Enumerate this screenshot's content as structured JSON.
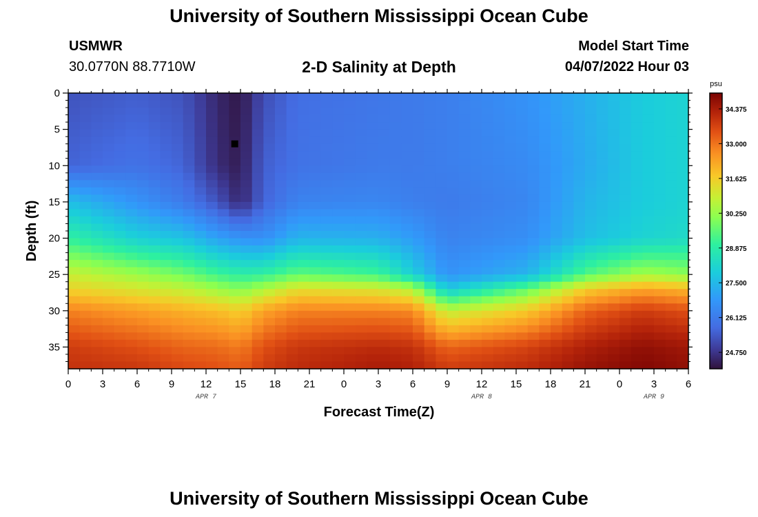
{
  "header": {
    "title": "University of Southern Mississippi Ocean Cube",
    "station": "USMWR",
    "coordinates": "30.0770N  88.7710W",
    "subtitle": "2-D Salinity at Depth",
    "model_start_label": "Model Start Time",
    "model_start_value": "04/07/2022 Hour 03"
  },
  "footer": {
    "title": "University of Southern Mississippi Ocean Cube"
  },
  "chart_data": {
    "type": "heatmap",
    "xlabel": "Forecast Time(Z)",
    "ylabel": "Depth (ft)",
    "x_tick_labels": [
      "0",
      "3",
      "6",
      "9",
      "12",
      "15",
      "18",
      "21",
      "0",
      "3",
      "6",
      "9",
      "12",
      "15",
      "18",
      "21",
      "0",
      "3",
      "6"
    ],
    "x_hours_since_start": [
      0,
      3,
      6,
      9,
      12,
      15,
      18,
      21,
      24,
      27,
      30,
      33,
      36,
      39,
      42,
      45,
      48,
      51,
      54
    ],
    "date_labels": [
      {
        "label": "APR 7",
        "at_hour": 12
      },
      {
        "label": "APR 8",
        "at_hour": 36
      },
      {
        "label": "APR 9",
        "at_hour": 51
      }
    ],
    "y_ticks": [
      0,
      5,
      10,
      15,
      20,
      25,
      30,
      35
    ],
    "ylim": [
      0,
      38
    ],
    "y_inverted": true,
    "colorbar": {
      "unit": "psu",
      "ticks": [
        "34.375",
        "33.000",
        "31.625",
        "30.250",
        "28.875",
        "27.500",
        "26.125",
        "24.750"
      ],
      "range": [
        24.1,
        35.0
      ]
    },
    "marker": {
      "hour": 14.5,
      "depth": 7
    },
    "salinity_profiles": {
      "depths_ft": [
        0,
        10,
        15,
        20,
        25,
        27,
        30,
        35,
        38
      ],
      "profiles": [
        {
          "hour": 0,
          "values": [
            25.3,
            25.6,
            27.6,
            29.0,
            30.9,
            31.5,
            32.8,
            33.8,
            34.0
          ]
        },
        {
          "hour": 6,
          "values": [
            25.5,
            25.9,
            26.7,
            28.0,
            30.3,
            31.1,
            32.4,
            33.5,
            33.9
          ]
        },
        {
          "hour": 10,
          "values": [
            25.3,
            25.6,
            26.1,
            27.7,
            29.8,
            30.8,
            32.1,
            33.2,
            33.6
          ]
        },
        {
          "hour": 13,
          "values": [
            24.5,
            24.6,
            25.3,
            27.0,
            29.2,
            30.3,
            31.9,
            33.1,
            33.5
          ]
        },
        {
          "hour": 15,
          "values": [
            24.2,
            24.3,
            24.5,
            26.7,
            28.9,
            30.0,
            31.6,
            32.9,
            33.3
          ]
        },
        {
          "hour": 17,
          "values": [
            25.2,
            25.5,
            25.6,
            26.6,
            29.0,
            30.5,
            32.3,
            33.5,
            33.8
          ]
        },
        {
          "hour": 20,
          "values": [
            25.8,
            25.9,
            26.3,
            27.4,
            29.6,
            31.3,
            32.8,
            33.9,
            34.1
          ]
        },
        {
          "hour": 27,
          "values": [
            26.0,
            26.1,
            26.4,
            27.3,
            29.2,
            31.1,
            32.8,
            34.1,
            34.4
          ]
        },
        {
          "hour": 30,
          "values": [
            26.1,
            26.1,
            26.2,
            26.9,
            28.0,
            30.6,
            32.7,
            34.0,
            34.3
          ]
        },
        {
          "hour": 33,
          "values": [
            26.2,
            26.2,
            26.1,
            26.3,
            26.7,
            27.8,
            30.8,
            33.2,
            33.8
          ]
        },
        {
          "hour": 40,
          "values": [
            26.7,
            26.5,
            26.4,
            26.6,
            27.4,
            29.6,
            31.7,
            33.7,
            34.1
          ]
        },
        {
          "hour": 45,
          "values": [
            27.3,
            27.2,
            27.4,
            27.6,
            29.4,
            31.6,
            33.2,
            34.3,
            34.6
          ]
        },
        {
          "hour": 50,
          "values": [
            27.9,
            27.9,
            27.9,
            28.1,
            30.4,
            32.3,
            33.8,
            34.7,
            34.9
          ]
        },
        {
          "hour": 54,
          "values": [
            28.1,
            28.1,
            28.1,
            28.3,
            30.1,
            32.0,
            33.5,
            34.5,
            34.7
          ]
        }
      ]
    }
  }
}
